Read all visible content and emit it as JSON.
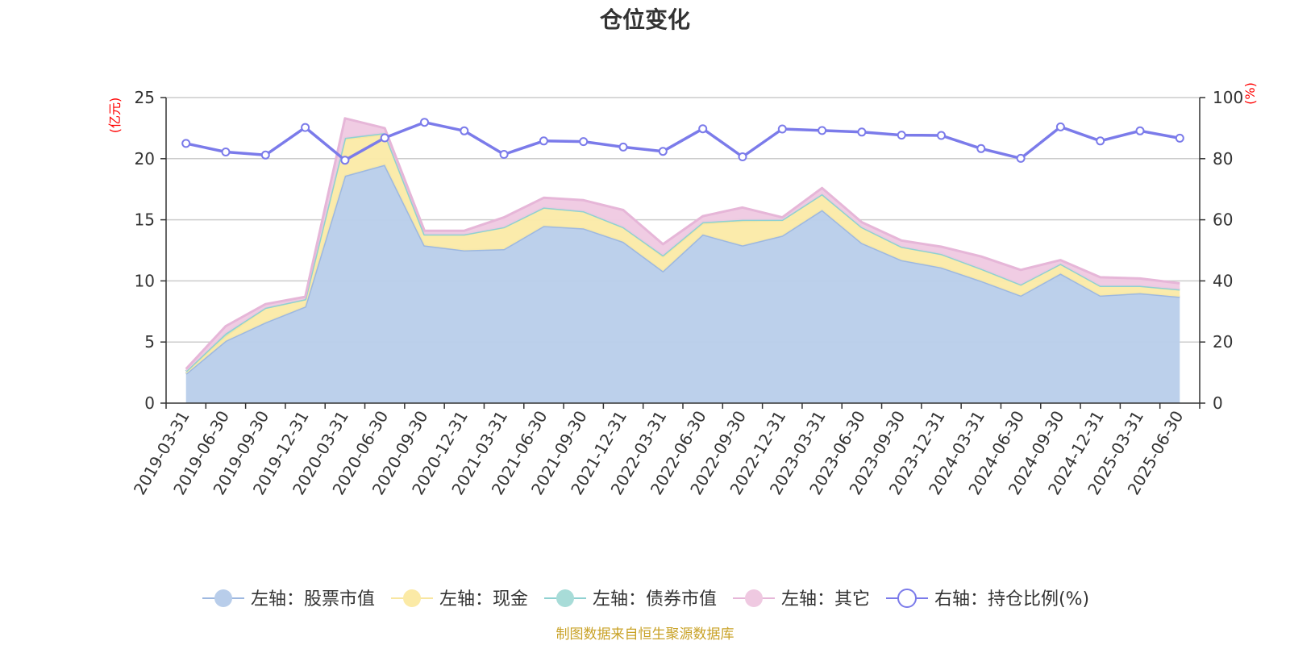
{
  "chart_data": {
    "type": "area",
    "title": "仓位变化",
    "left_axis_unit": "(亿元)",
    "right_axis_unit": "(%)",
    "left_ylim": [
      0,
      25
    ],
    "left_ticks": [
      0,
      5,
      10,
      15,
      20,
      25
    ],
    "right_ylim": [
      0,
      100
    ],
    "right_ticks": [
      0,
      20,
      40,
      60,
      80,
      100
    ],
    "grid": true,
    "legend_position": "bottom",
    "categories": [
      "2019-03-31",
      "2019-06-30",
      "2019-09-30",
      "2019-12-31",
      "2020-03-31",
      "2020-06-30",
      "2020-09-30",
      "2020-12-31",
      "2021-03-31",
      "2021-06-30",
      "2021-09-30",
      "2021-12-31",
      "2022-03-31",
      "2022-06-30",
      "2022-09-30",
      "2022-12-31",
      "2023-03-31",
      "2023-06-30",
      "2023-09-30",
      "2023-12-31",
      "2024-03-31",
      "2024-06-30",
      "2024-09-30",
      "2024-12-31",
      "2025-03-31",
      "2025-06-30"
    ],
    "series": [
      {
        "name": "左轴：股票市值",
        "axis": "left",
        "color": "#9db8e0",
        "fill": "#b8cdea",
        "values": [
          2.4,
          5.1,
          6.6,
          7.9,
          18.6,
          19.5,
          12.9,
          12.5,
          12.6,
          14.5,
          14.3,
          13.2,
          10.8,
          13.8,
          12.9,
          13.7,
          15.8,
          13.1,
          11.7,
          11.1,
          10.0,
          8.8,
          10.6,
          8.8,
          9.0,
          8.7
        ]
      },
      {
        "name": "左轴：现金",
        "axis": "left",
        "color": "#f8e6a0",
        "fill": "#fbeaa6",
        "values": [
          0.2,
          0.4,
          1.2,
          0.6,
          3.0,
          2.5,
          0.9,
          1.3,
          1.8,
          1.5,
          1.4,
          1.2,
          1.2,
          0.9,
          2.0,
          1.3,
          1.3,
          1.3,
          1.1,
          1.1,
          1.0,
          0.9,
          0.8,
          0.8,
          0.6,
          0.6
        ]
      },
      {
        "name": "左轴：债券市值",
        "axis": "left",
        "color": "#8fd1d1",
        "fill": "#a8dcd8",
        "values": [
          0.0,
          0.2,
          0.0,
          0.0,
          0.1,
          0.1,
          0.0,
          0.0,
          0.0,
          0.0,
          0.0,
          0.0,
          0.1,
          0.1,
          0.1,
          0.0,
          0.0,
          0.0,
          0.0,
          0.0,
          0.0,
          0.0,
          0.0,
          0.0,
          0.0,
          0.0
        ]
      },
      {
        "name": "左轴：其它",
        "axis": "left",
        "color": "#e6b6d8",
        "fill": "#efc9e1",
        "values": [
          0.2,
          0.6,
          0.3,
          0.2,
          1.6,
          0.4,
          0.3,
          0.3,
          0.8,
          0.8,
          0.9,
          1.4,
          0.9,
          0.5,
          1.0,
          0.2,
          0.5,
          0.4,
          0.5,
          0.6,
          1.0,
          1.2,
          0.3,
          0.7,
          0.6,
          0.5
        ]
      },
      {
        "name": "右轴：持仓比例(%)",
        "axis": "right",
        "color": "#7b7bea",
        "values": [
          85.0,
          82.2,
          81.2,
          90.2,
          79.5,
          86.8,
          91.9,
          89.1,
          81.4,
          85.8,
          85.6,
          83.8,
          82.4,
          89.8,
          80.6,
          89.7,
          89.2,
          88.7,
          87.7,
          87.6,
          83.3,
          80.1,
          90.4,
          85.8,
          89.1,
          86.7
        ]
      }
    ]
  },
  "footer": {
    "source": "制图数据来自恒生聚源数据库"
  }
}
